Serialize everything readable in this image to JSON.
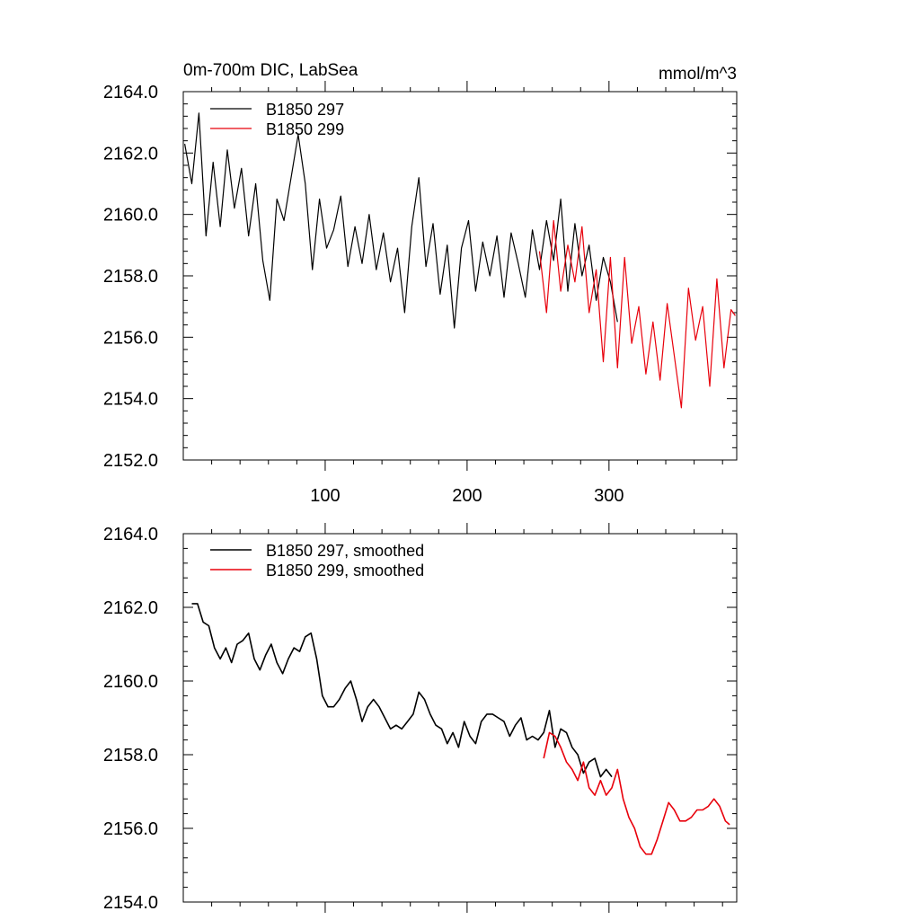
{
  "chart_data": [
    {
      "type": "line",
      "title": "0m-700m DIC, LabSea",
      "units": "mmol/m^3",
      "xlim": [
        0,
        390
      ],
      "ylim": [
        2152,
        2164
      ],
      "yticks": [
        2152,
        2154,
        2156,
        2158,
        2160,
        2162,
        2164
      ],
      "yticklabels": [
        "2152.0",
        "2154.0",
        "2156.0",
        "2158.0",
        "2160.0",
        "2162.0",
        "2164.0"
      ],
      "xticks": [
        100,
        200,
        300
      ],
      "xticklabels": [
        "100",
        "200",
        "300"
      ],
      "legend_position": "top-left",
      "series": [
        {
          "name": "B1850 297",
          "color": "#000000",
          "x": [
            1,
            6,
            11,
            16,
            21,
            26,
            31,
            36,
            41,
            46,
            51,
            56,
            61,
            66,
            71,
            76,
            81,
            86,
            91,
            96,
            101,
            106,
            111,
            116,
            121,
            126,
            131,
            136,
            141,
            146,
            151,
            156,
            161,
            166,
            171,
            176,
            181,
            186,
            191,
            196,
            201,
            206,
            211,
            216,
            221,
            226,
            231,
            236,
            241,
            246,
            251,
            256,
            261,
            266,
            271,
            276,
            281,
            286,
            291,
            296,
            301,
            306
          ],
          "values": [
            2162.3,
            2161.0,
            2163.3,
            2159.3,
            2161.7,
            2159.6,
            2162.1,
            2160.2,
            2161.5,
            2159.3,
            2161.0,
            2158.5,
            2157.2,
            2160.5,
            2159.8,
            2161.2,
            2162.6,
            2161.0,
            2158.2,
            2160.5,
            2158.9,
            2159.5,
            2160.6,
            2158.3,
            2159.6,
            2158.4,
            2160.0,
            2158.2,
            2159.4,
            2157.8,
            2158.9,
            2156.8,
            2159.6,
            2161.2,
            2158.3,
            2159.7,
            2157.4,
            2159.0,
            2156.3,
            2158.9,
            2159.8,
            2157.5,
            2159.1,
            2158.0,
            2159.3,
            2157.3,
            2159.4,
            2158.4,
            2157.3,
            2159.5,
            2158.2,
            2159.8,
            2158.5,
            2160.5,
            2157.5,
            2159.7,
            2158.0,
            2159.0,
            2157.2,
            2158.6,
            2157.8,
            2156.5
          ]
        },
        {
          "name": "B1850 299",
          "color": "#e8000b",
          "x": [
            251,
            256,
            261,
            266,
            271,
            276,
            281,
            286,
            291,
            296,
            301,
            306,
            311,
            316,
            321,
            326,
            331,
            336,
            341,
            346,
            351,
            356,
            361,
            366,
            371,
            376,
            381,
            386,
            389
          ],
          "values": [
            2158.8,
            2156.8,
            2159.8,
            2157.5,
            2159.0,
            2157.8,
            2159.6,
            2156.8,
            2158.2,
            2155.2,
            2158.6,
            2155.0,
            2158.6,
            2155.8,
            2157.0,
            2154.8,
            2156.5,
            2154.6,
            2157.1,
            2155.4,
            2153.7,
            2157.6,
            2155.9,
            2157.0,
            2154.4,
            2157.9,
            2155.0,
            2156.9,
            2156.7
          ]
        }
      ]
    },
    {
      "type": "line",
      "title": "",
      "xlim": [
        0,
        390
      ],
      "ylim": [
        2154,
        2164
      ],
      "yticks": [
        2154,
        2156,
        2158,
        2160,
        2162,
        2164
      ],
      "yticklabels": [
        "2154.0",
        "2156.0",
        "2158.0",
        "2160.0",
        "2162.0",
        "2164.0"
      ],
      "xticks": [
        100,
        200,
        300
      ],
      "xticklabels": [],
      "legend_position": "top-left",
      "series": [
        {
          "name": "B1850 297, smoothed",
          "color": "#000000",
          "x": [
            6,
            10,
            14,
            18,
            22,
            26,
            30,
            34,
            38,
            42,
            46,
            50,
            54,
            58,
            62,
            66,
            70,
            74,
            78,
            82,
            86,
            90,
            94,
            98,
            102,
            106,
            110,
            114,
            118,
            122,
            126,
            130,
            134,
            138,
            142,
            146,
            150,
            154,
            158,
            162,
            166,
            170,
            174,
            178,
            182,
            186,
            190,
            194,
            198,
            202,
            206,
            210,
            214,
            218,
            222,
            226,
            230,
            234,
            238,
            242,
            246,
            250,
            254,
            258,
            262,
            266,
            270,
            274,
            278,
            282,
            286,
            290,
            294,
            298,
            302
          ],
          "values": [
            2162.1,
            2162.1,
            2161.6,
            2161.5,
            2160.9,
            2160.6,
            2160.9,
            2160.5,
            2161.0,
            2161.1,
            2161.3,
            2160.6,
            2160.3,
            2160.7,
            2161.0,
            2160.5,
            2160.2,
            2160.6,
            2160.9,
            2160.8,
            2161.2,
            2161.3,
            2160.6,
            2159.6,
            2159.3,
            2159.3,
            2159.5,
            2159.8,
            2160.0,
            2159.5,
            2158.9,
            2159.3,
            2159.5,
            2159.3,
            2159.0,
            2158.7,
            2158.8,
            2158.7,
            2158.9,
            2159.1,
            2159.7,
            2159.5,
            2159.1,
            2158.8,
            2158.7,
            2158.3,
            2158.6,
            2158.2,
            2158.9,
            2158.5,
            2158.3,
            2158.9,
            2159.1,
            2159.1,
            2159.0,
            2158.9,
            2158.5,
            2158.8,
            2159.0,
            2158.4,
            2158.5,
            2158.4,
            2158.6,
            2159.2,
            2158.2,
            2158.7,
            2158.6,
            2158.2,
            2158.0,
            2157.5,
            2157.8,
            2157.9,
            2157.4,
            2157.6,
            2157.4
          ]
        },
        {
          "name": "B1850 299, smoothed",
          "color": "#e8000b",
          "x": [
            254,
            258,
            262,
            266,
            270,
            274,
            278,
            282,
            286,
            290,
            294,
            298,
            302,
            306,
            310,
            314,
            318,
            322,
            326,
            330,
            334,
            338,
            342,
            346,
            350,
            354,
            358,
            362,
            366,
            370,
            374,
            378,
            382,
            385
          ],
          "values": [
            2157.9,
            2158.6,
            2158.5,
            2158.2,
            2157.8,
            2157.6,
            2157.3,
            2157.8,
            2157.1,
            2156.9,
            2157.3,
            2156.9,
            2157.1,
            2157.6,
            2156.8,
            2156.3,
            2156.0,
            2155.5,
            2155.3,
            2155.3,
            2155.7,
            2156.2,
            2156.7,
            2156.5,
            2156.2,
            2156.2,
            2156.3,
            2156.5,
            2156.5,
            2156.6,
            2156.8,
            2156.6,
            2156.2,
            2156.1
          ]
        }
      ]
    }
  ]
}
